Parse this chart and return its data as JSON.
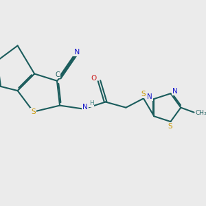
{
  "bg": "#ebebeb",
  "bc": "#1a5c5c",
  "lw": 1.5,
  "dbo": 0.035,
  "colors": {
    "S": "#c89600",
    "N": "#1a1acc",
    "O": "#cc2020",
    "C": "#1a5c5c",
    "H": "#4a8a8a"
  },
  "fs": 7.5
}
